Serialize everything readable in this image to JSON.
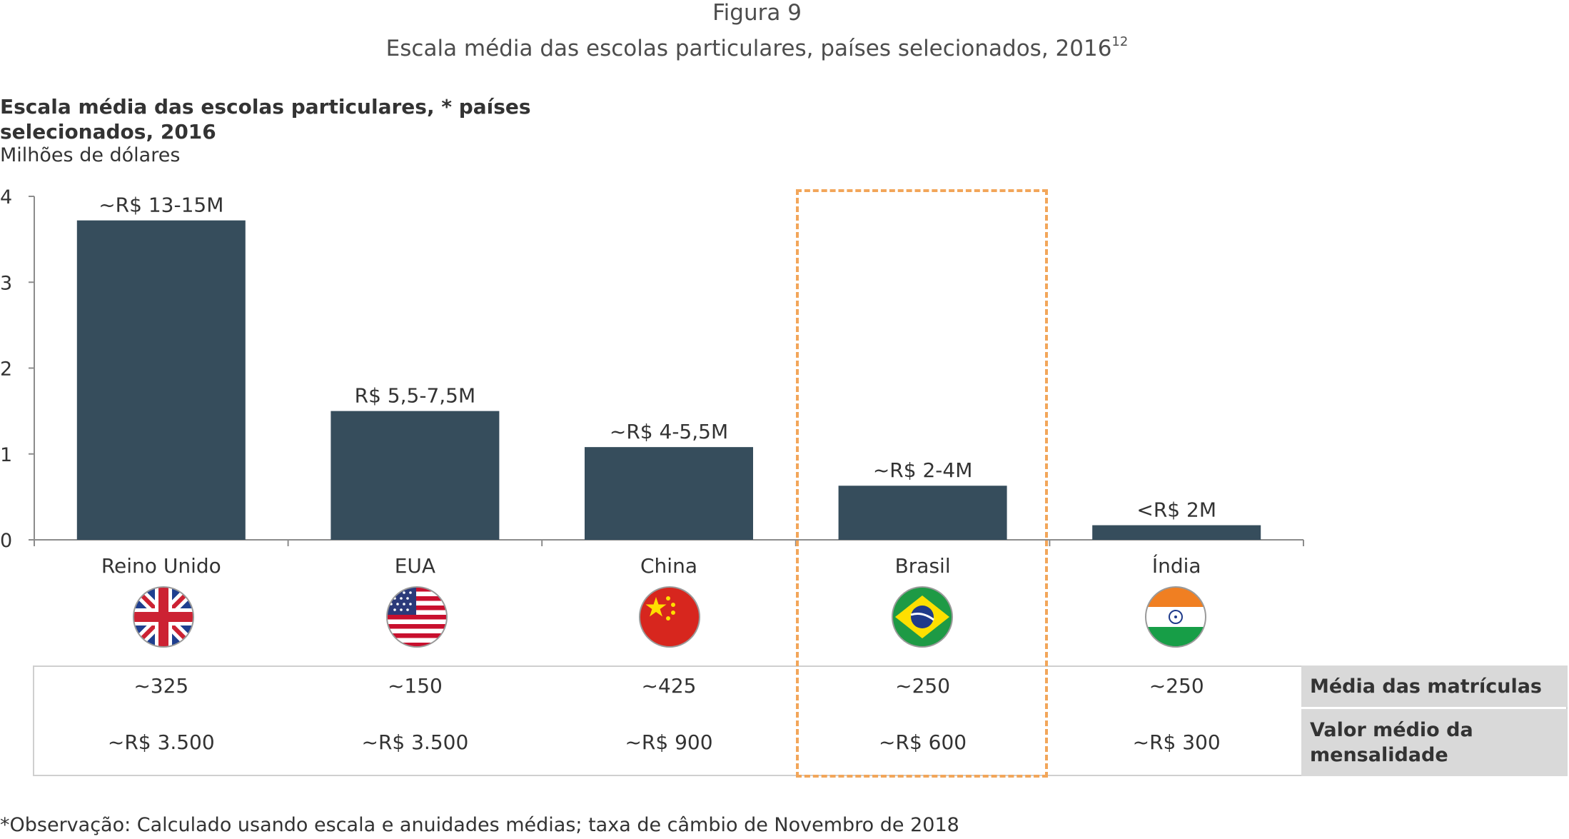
{
  "header": {
    "figure_label": "Figura 9",
    "figure_title": "Escala média das escolas particulares, países selecionados, 2016",
    "figure_title_sup": "12"
  },
  "chart_data": {
    "type": "bar",
    "title": "Escala média das escolas particulares, * países selecionados, 2016",
    "ylabel": "Milhões de dólares",
    "xlabel": "",
    "categories": [
      "Reino Unido",
      "EUA",
      "China",
      "Brasil",
      "Índia"
    ],
    "values": [
      3.72,
      1.5,
      1.08,
      0.63,
      0.17
    ],
    "value_labels": [
      "~R$ 13-15M",
      "R$ 5,5-7,5M",
      "~R$ 4-5,5M",
      "~R$ 2-4M",
      "<R$ 2M"
    ],
    "ylim": [
      0,
      4
    ],
    "yticks": [
      "0",
      "1",
      "2",
      "3",
      "4"
    ],
    "grid": false,
    "bar_color": "#364d5c",
    "highlight_category": "Brasil",
    "highlight_color": "#f2a65a"
  },
  "flags": [
    {
      "country": "Reino Unido",
      "icon": "uk-flag-icon"
    },
    {
      "country": "EUA",
      "icon": "usa-flag-icon"
    },
    {
      "country": "China",
      "icon": "china-flag-icon"
    },
    {
      "country": "Brasil",
      "icon": "brazil-flag-icon"
    },
    {
      "country": "Índia",
      "icon": "india-flag-icon"
    }
  ],
  "table": {
    "rows": [
      {
        "label": "Média das matrículas",
        "values": [
          "~325",
          "~150",
          "~425",
          "~250",
          "~250"
        ]
      },
      {
        "label": "Valor médio da mensalidade",
        "values": [
          "~R$ 3.500",
          "~R$ 3.500",
          "~R$ 900",
          "~R$ 600",
          "~R$ 300"
        ]
      }
    ]
  },
  "footnote": "*Observação: Calculado usando escala e anuidades médias; taxa de câmbio de Novembro de 2018"
}
